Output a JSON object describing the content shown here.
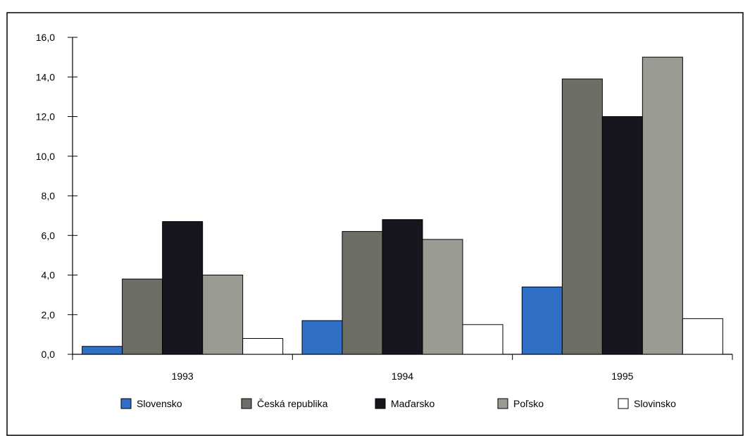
{
  "chart_data": {
    "type": "bar",
    "categories": [
      "1993",
      "1994",
      "1995"
    ],
    "series": [
      {
        "name": "Slovensko",
        "values": [
          0.4,
          1.7,
          3.4
        ]
      },
      {
        "name": "Česká republika",
        "values": [
          3.8,
          6.2,
          13.9
        ]
      },
      {
        "name": "Maďarsko",
        "values": [
          6.7,
          6.8,
          12.0
        ]
      },
      {
        "name": "Poľsko",
        "values": [
          4.0,
          5.8,
          15.0
        ]
      },
      {
        "name": "Slovinsko",
        "values": [
          0.8,
          1.5,
          1.8
        ]
      }
    ],
    "ylim": [
      0,
      16
    ],
    "yticks": [
      "0,0",
      "2,0",
      "4,0",
      "6,0",
      "8,0",
      "10,0",
      "12,0",
      "14,0",
      "16,0"
    ],
    "ytick_values": [
      0,
      2,
      4,
      6,
      8,
      10,
      12,
      14,
      16
    ],
    "grid": false,
    "legend_position": "bottom",
    "title": "",
    "xlabel": "",
    "ylabel": ""
  },
  "colors": {
    "Slovensko": "#2f6fc6",
    "Česká republika": "#6e6e66",
    "Maďarsko": "#16161e",
    "Poľsko": "#9b9b93",
    "Slovinsko": "#ffffff"
  }
}
